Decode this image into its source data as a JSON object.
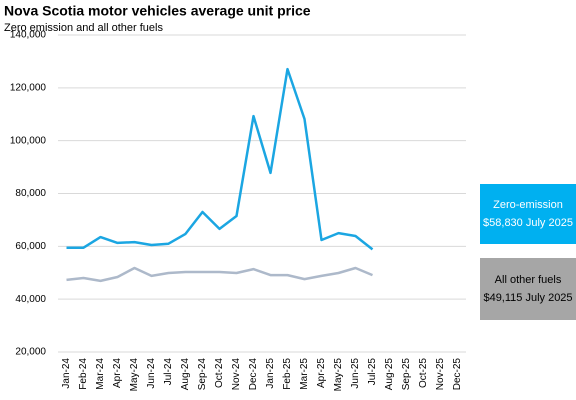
{
  "chart_data": {
    "type": "line",
    "title": "Nova Scotia motor vehicles  average unit price",
    "subtitle": "Zero emission  and  all other fuels",
    "categories": [
      "Jan-24",
      "Feb-24",
      "Mar-24",
      "Apr-24",
      "May-24",
      "Jun-24",
      "Jul-24",
      "Aug-24",
      "Sep-24",
      "Oct-24",
      "Nov-24",
      "Dec-24",
      "Jan-25",
      "Feb-25",
      "Mar-25",
      "Apr-25",
      "May-25",
      "Jun-25",
      "Jul-25",
      "Aug-25",
      "Sep-25",
      "Oct-25",
      "Nov-25",
      "Dec-25"
    ],
    "series": [
      {
        "name": "Zero-emission",
        "color": "#1ba6e2",
        "values": [
          59500,
          59500,
          63500,
          61300,
          61600,
          60500,
          61000,
          64700,
          73000,
          66600,
          71500,
          109300,
          87800,
          127100,
          108200,
          62400,
          65000,
          63900,
          58830,
          null,
          null,
          null,
          null,
          null
        ]
      },
      {
        "name": "All other fuels",
        "color": "#adb9ca",
        "values": [
          47300,
          48000,
          46900,
          48400,
          51800,
          48800,
          49900,
          50300,
          50300,
          50300,
          49900,
          51400,
          49100,
          49100,
          47600,
          48800,
          49900,
          51800,
          49115,
          null,
          null,
          null,
          null,
          null
        ]
      }
    ],
    "ylim": [
      20000,
      140000
    ],
    "yticks": [
      {
        "value": 20000,
        "label": "20,000"
      },
      {
        "value": 40000,
        "label": "40,000"
      },
      {
        "value": 60000,
        "label": "60,000"
      },
      {
        "value": 80000,
        "label": "80,000"
      },
      {
        "value": 100000,
        "label": "100,000"
      },
      {
        "value": 120000,
        "label": "120,000"
      },
      {
        "value": 140000,
        "label": "140,000"
      }
    ],
    "grid": true,
    "annotations": [
      {
        "lines": [
          "Zero-emission",
          "$58,830 July 2025"
        ],
        "color": "#00b0f0",
        "text_color": "#ffffff"
      },
      {
        "lines": [
          "All other fuels",
          "$49,115 July 2025"
        ],
        "color": "#a6a6a6",
        "text_color": "#000000"
      }
    ]
  }
}
